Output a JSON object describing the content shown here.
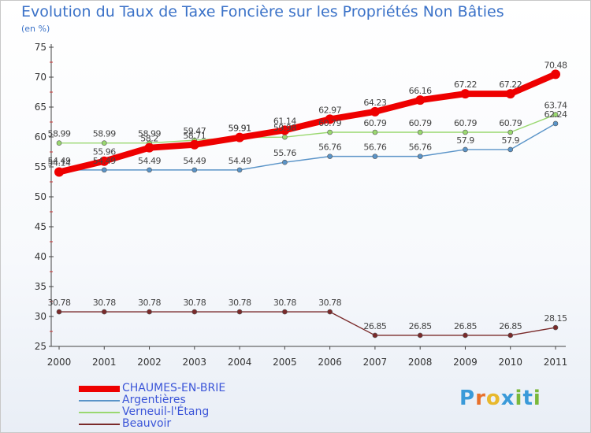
{
  "title": "Evolution du Taux de Taxe Foncière sur les Propriétés Non Bâties",
  "subtitle": "(en %)",
  "logo": {
    "text": "Proxiti",
    "letters": [
      "P",
      "r",
      "o",
      "x",
      "i",
      "t",
      "i"
    ],
    "colors": [
      "#3a9ad9",
      "#e8712c",
      "#e8b82c",
      "#3a9ad9",
      "#7ab83a",
      "#3a9ad9",
      "#7ab83a"
    ]
  },
  "chart_data": {
    "type": "line",
    "x": [
      "2000",
      "2001",
      "2002",
      "2003",
      "2004",
      "2005",
      "2006",
      "2007",
      "2008",
      "2009",
      "2010",
      "2011"
    ],
    "ylim": [
      25,
      75
    ],
    "yticks": [
      "25",
      "30",
      "35",
      "40",
      "45",
      "50",
      "55",
      "60",
      "65",
      "70",
      "75"
    ],
    "grid": false,
    "legend": "bottom-left",
    "series": [
      {
        "name": "Beauvoir",
        "color": "#7a2a2a",
        "width": 1.4,
        "marker": 3,
        "values": [
          30.78,
          30.78,
          30.78,
          30.78,
          30.78,
          30.78,
          30.78,
          26.85,
          26.85,
          26.85,
          26.85,
          28.15
        ],
        "labels": [
          "30.78",
          "30.78",
          "30.78",
          "30.78",
          "30.78",
          "30.78",
          "30.78",
          "26.85",
          "26.85",
          "26.85",
          "26.85",
          "28.15"
        ]
      },
      {
        "name": "Argentières",
        "color": "#5a94c8",
        "width": 1.4,
        "marker": 3,
        "values": [
          54.49,
          54.49,
          54.49,
          54.49,
          54.49,
          55.76,
          56.76,
          56.76,
          56.76,
          57.9,
          57.9,
          62.24
        ],
        "labels": [
          "54.49",
          "54.49",
          "54.49",
          "54.49",
          "54.49",
          "55.76",
          "56.76",
          "56.76",
          "56.76",
          "57.9",
          "57.9",
          "62.24"
        ]
      },
      {
        "name": "Verneuil-l'Étang",
        "color": "#9ad870",
        "width": 1.4,
        "marker": 3,
        "values": [
          58.99,
          58.99,
          58.99,
          59.47,
          59.91,
          59.98,
          60.79,
          60.79,
          60.79,
          60.79,
          60.79,
          63.74
        ],
        "labels": [
          "58.99",
          "58.99",
          "58.99",
          "59.47",
          "59.91",
          "59.98",
          "60.79",
          "60.79",
          "60.79",
          "60.79",
          "60.79",
          "63.74"
        ]
      },
      {
        "name": "CHAUMES-EN-BRIE",
        "color": "#ee0000",
        "width": 8,
        "marker": 6,
        "values": [
          54.14,
          55.96,
          58.2,
          58.71,
          59.91,
          61.14,
          62.97,
          64.23,
          66.16,
          67.22,
          67.22,
          70.48
        ],
        "labels": [
          "54.14",
          "55.96",
          "58.2",
          "58.71",
          "59.91",
          "61.14",
          "62.97",
          "64.23",
          "66.16",
          "67.22",
          "67.22",
          "70.48"
        ]
      }
    ]
  },
  "legend": [
    {
      "name": "CHAUMES-EN-BRIE",
      "color": "#ee0000",
      "thick": true
    },
    {
      "name": "Argentières",
      "color": "#5a94c8",
      "thick": false
    },
    {
      "name": "Verneuil-l'Étang",
      "color": "#9ad870",
      "thick": false
    },
    {
      "name": "Beauvoir",
      "color": "#7a2a2a",
      "thick": false
    }
  ]
}
